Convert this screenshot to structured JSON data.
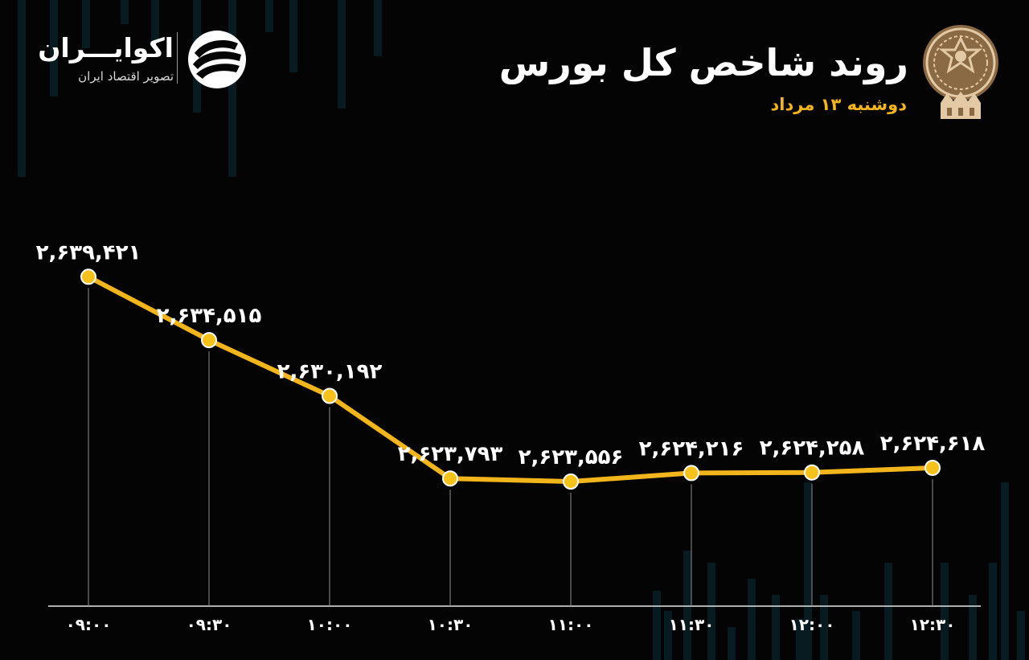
{
  "header": {
    "title": "روند شاخص کل بورس",
    "subtitle": "دوشنبه ۱۳ مرداد"
  },
  "brand": {
    "name": "اکوایـــران",
    "tagline": "تصویر اقتصاد ایران"
  },
  "emblem": {
    "icon": "stock-exchange-emblem-icon"
  },
  "colors": {
    "background": "#040404",
    "line": "#f2b51c",
    "marker": "#f5c21b",
    "text": "#ffffff",
    "accent": "#f2b51c",
    "background_bars": "#0c2f3a"
  },
  "chart_data": {
    "type": "line",
    "categories": [
      "۰۹:۰۰",
      "۰۹:۳۰",
      "۱۰:۰۰",
      "۱۰:۳۰",
      "۱۱:۰۰",
      "۱۱:۳۰",
      "۱۲:۰۰",
      "۱۲:۳۰"
    ],
    "values": [
      2639421,
      2634515,
      2630192,
      2623793,
      2623556,
      2624216,
      2624258,
      2624618
    ],
    "labels": [
      "۲,۶۳۹,۴۲۱",
      "۲,۶۳۴,۵۱۵",
      "۲,۶۳۰,۱۹۲",
      "۲,۶۲۳,۷۹۳",
      "۲,۶۲۳,۵۵۶",
      "۲,۶۲۴,۲۱۶",
      "۲,۶۲۴,۲۵۸",
      "۲,۶۲۴,۶۱۸"
    ],
    "grid": false,
    "legend": "none",
    "title": "روند شاخص کل بورس",
    "subtitle": "دوشنبه ۱۳ مرداد"
  }
}
